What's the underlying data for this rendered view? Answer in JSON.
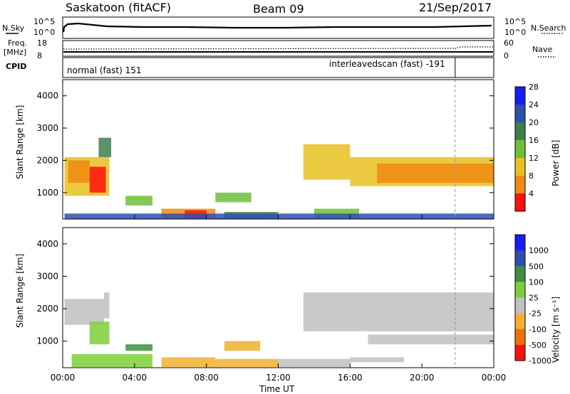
{
  "header": {
    "station": "Saskatoon (fitACF)",
    "beam": "Beam 09",
    "date": "21/Sep/2017"
  },
  "status_panels": {
    "nsky_label": "N.Sky",
    "nsearch_label": "N.Search",
    "noise_ticks_left": [
      "10^5",
      "10^0"
    ],
    "noise_ticks_right": [
      "10^5",
      "10^0"
    ],
    "freq_label": "Freq.",
    "freq_unit": "[MHz]",
    "freq_ticks": [
      "18",
      "8"
    ],
    "nave_label": "Nave",
    "nave_ticks": [
      "60",
      "0"
    ],
    "cpid_label": "CPID",
    "cpid_modes": [
      "normal (fast) 151",
      "interleavedscan (fast) -191"
    ],
    "cpid_switch_hour": 21.85
  },
  "chart_data": [
    {
      "type": "heatmap",
      "name": "power",
      "ylabel": "Slant Range [km]",
      "yticks": [
        "1000",
        "2000",
        "3000",
        "4000"
      ],
      "ylim": [
        180,
        4500
      ],
      "xlim": [
        0,
        24
      ],
      "colorbar_label": "Power [dB]",
      "colorbar_ticks": [
        "4",
        "8",
        "12",
        "16",
        "20",
        "24",
        "28"
      ],
      "colorbar_colors": [
        "#1a1aff",
        "#2e4fb0",
        "#3f7f4e",
        "#6fbf3a",
        "#e8c020",
        "#f08a10",
        "#ff1010"
      ],
      "regions": [
        {
          "t": [
            0.1,
            2.6
          ],
          "r": [
            900,
            2100
          ],
          "c": 4
        },
        {
          "t": [
            0.3,
            1.5
          ],
          "r": [
            1300,
            2000
          ],
          "c": 5
        },
        {
          "t": [
            1.5,
            2.4
          ],
          "r": [
            1000,
            1800
          ],
          "c": 6
        },
        {
          "t": [
            2.0,
            2.7
          ],
          "r": [
            2100,
            2700
          ],
          "c": 2
        },
        {
          "t": [
            3.5,
            5.0
          ],
          "r": [
            600,
            900
          ],
          "c": 3
        },
        {
          "t": [
            5.5,
            8.5
          ],
          "r": [
            200,
            500
          ],
          "c": 5
        },
        {
          "t": [
            6.8,
            8.0
          ],
          "r": [
            200,
            450
          ],
          "c": 6
        },
        {
          "t": [
            8.5,
            10.5
          ],
          "r": [
            700,
            1000
          ],
          "c": 3
        },
        {
          "t": [
            9.0,
            12.0
          ],
          "r": [
            200,
            400
          ],
          "c": 2
        },
        {
          "t": [
            13.4,
            16.0
          ],
          "r": [
            1400,
            2500
          ],
          "c": 4
        },
        {
          "t": [
            14.0,
            16.5
          ],
          "r": [
            200,
            500
          ],
          "c": 3
        },
        {
          "t": [
            16.0,
            24.0
          ],
          "r": [
            1200,
            2100
          ],
          "c": 4
        },
        {
          "t": [
            17.5,
            24.0
          ],
          "r": [
            1300,
            1900
          ],
          "c": 5
        },
        {
          "t": [
            0.1,
            24.0
          ],
          "r": [
            180,
            350
          ],
          "c": 1
        }
      ]
    },
    {
      "type": "heatmap",
      "name": "velocity",
      "xlabel": "Time UT",
      "xticks": [
        "00:00",
        "04:00",
        "08:00",
        "12:00",
        "16:00",
        "20:00",
        "00:00"
      ],
      "ylabel": "Slant Range [km]",
      "yticks": [
        "1000",
        "2000",
        "3000",
        "4000"
      ],
      "ylim": [
        180,
        4500
      ],
      "xlim": [
        0,
        24
      ],
      "colorbar_label": "Velocity [m s⁻¹]",
      "colorbar_ticks": [
        "1000",
        "500",
        "100",
        "25",
        "-25",
        "-100",
        "-500",
        "-1000"
      ],
      "colorbar_colors": [
        "#1a1aff",
        "#2e4fb0",
        "#3f8f3e",
        "#7fcf3a",
        "#c0c0c0",
        "#f0b030",
        "#f07010",
        "#ff1010"
      ],
      "regions": [
        {
          "t": [
            0.1,
            2.3
          ],
          "r": [
            1500,
            2300
          ],
          "c": 4
        },
        {
          "t": [
            1.5,
            2.6
          ],
          "r": [
            900,
            1600
          ],
          "c": 3
        },
        {
          "t": [
            2.3,
            2.6
          ],
          "r": [
            1700,
            2500
          ],
          "c": 4
        },
        {
          "t": [
            3.5,
            5.0
          ],
          "r": [
            700,
            900
          ],
          "c": 2
        },
        {
          "t": [
            0.5,
            5.0
          ],
          "r": [
            200,
            600
          ],
          "c": 3
        },
        {
          "t": [
            5.5,
            8.5
          ],
          "r": [
            200,
            500
          ],
          "c": 5
        },
        {
          "t": [
            8.5,
            12.0
          ],
          "r": [
            200,
            450
          ],
          "c": 5
        },
        {
          "t": [
            9.0,
            11.0
          ],
          "r": [
            700,
            1000
          ],
          "c": 5
        },
        {
          "t": [
            12.0,
            16.0
          ],
          "r": [
            200,
            450
          ],
          "c": 4
        },
        {
          "t": [
            16.0,
            19.0
          ],
          "r": [
            350,
            500
          ],
          "c": 4
        },
        {
          "t": [
            13.4,
            24.0
          ],
          "r": [
            1300,
            2500
          ],
          "c": 4
        },
        {
          "t": [
            17.0,
            24.0
          ],
          "r": [
            900,
            1200
          ],
          "c": 4
        }
      ]
    }
  ]
}
